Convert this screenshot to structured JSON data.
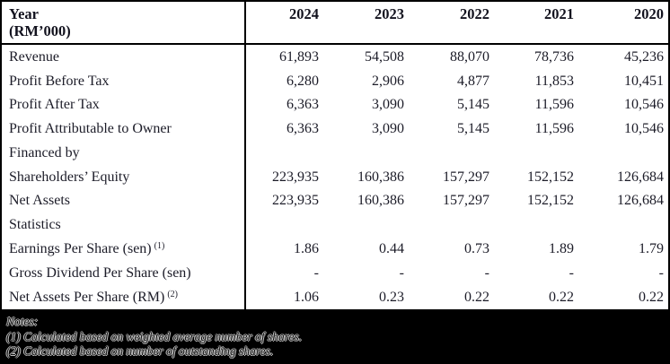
{
  "table": {
    "header": {
      "label_line1": "Year",
      "label_line2": "(RM’000)",
      "years": [
        "2024",
        "2023",
        "2022",
        "2021",
        "2020"
      ]
    },
    "rows": [
      {
        "type": "blank"
      },
      {
        "label": "Revenue",
        "values": [
          "61,893",
          "54,508",
          "88,070",
          "78,736",
          "45,236"
        ]
      },
      {
        "label": "Profit Before Tax",
        "values": [
          "6,280",
          "2,906",
          "4,877",
          "11,853",
          "10,451"
        ]
      },
      {
        "label": "Profit After Tax",
        "values": [
          "6,363",
          "3,090",
          "5,145",
          "11,596",
          "10,546"
        ]
      },
      {
        "label": "Profit Attributable to Owner",
        "values": [
          "6,363",
          "3,090",
          "5,145",
          "11,596",
          "10,546"
        ]
      },
      {
        "type": "blank"
      },
      {
        "label": "Financed by",
        "values": [
          "",
          "",
          "",
          "",
          ""
        ]
      },
      {
        "label": "Shareholders’ Equity",
        "values": [
          "223,935",
          "160,386",
          "157,297",
          "152,152",
          "126,684"
        ]
      },
      {
        "label": "Net Assets",
        "values": [
          "223,935",
          "160,386",
          "157,297",
          "152,152",
          "126,684"
        ]
      },
      {
        "type": "blank"
      },
      {
        "label": "Statistics",
        "values": [
          "",
          "",
          "",
          "",
          ""
        ]
      },
      {
        "label": "Earnings Per Share (sen)",
        "sup": "(1)",
        "values": [
          "1.86",
          "0.44",
          "0.73",
          "1.89",
          "1.79"
        ]
      },
      {
        "label": "Gross Dividend Per Share (sen)",
        "values": [
          "-",
          "-",
          "-",
          "-",
          "-"
        ]
      },
      {
        "label": "Net Assets Per Share (RM)",
        "sup": "(2)",
        "values": [
          "1.06",
          "0.23",
          "0.22",
          "0.22",
          "0.22"
        ]
      }
    ]
  },
  "notes": {
    "title": "Notes:",
    "items": [
      "(1) Calculated based on weighted average number of shares.",
      "(2) Calculated based on number of outstanding shares."
    ]
  },
  "colors": {
    "page_background": "#000000",
    "sheet_background": "#ffffff",
    "text": "#1c1c28",
    "border": "#000000",
    "notes_halo": "#c2c2c2"
  }
}
